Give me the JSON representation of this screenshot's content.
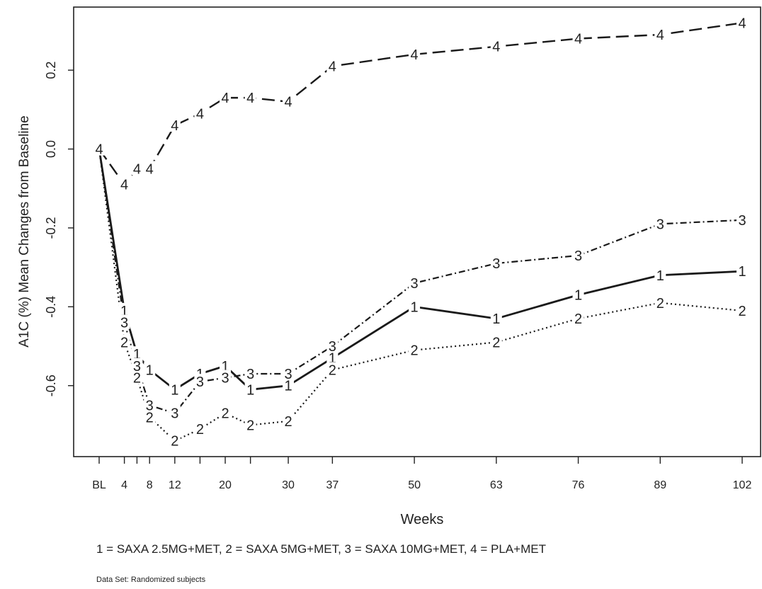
{
  "chart_data": {
    "type": "line",
    "xlabel": "Weeks",
    "ylabel": "A1C (%) Mean Changes from Baseline",
    "x_tick_labels": [
      "BL",
      "4",
      "8",
      "12",
      "20",
      "30",
      "37",
      "50",
      "63",
      "76",
      "89",
      "102"
    ],
    "x_tick_values": [
      0,
      4,
      8,
      12,
      20,
      30,
      37,
      50,
      63,
      76,
      89,
      102
    ],
    "y_ticks": [
      {
        "value": 0.2,
        "label": "0.2"
      },
      {
        "value": 0.0,
        "label": "0.0"
      },
      {
        "value": -0.2,
        "label": "-0.2"
      },
      {
        "value": -0.4,
        "label": "-0.4"
      },
      {
        "value": -0.6,
        "label": "-0.6"
      }
    ],
    "xlim": [
      0,
      102
    ],
    "ylim": [
      -0.78,
      0.36
    ],
    "series": [
      {
        "marker": "1",
        "style": "solid",
        "x": [
          0,
          4,
          6,
          8,
          12,
          16,
          20,
          24,
          30,
          37,
          50,
          63,
          76,
          89,
          102
        ],
        "y": [
          0.0,
          -0.41,
          -0.52,
          -0.56,
          -0.61,
          -0.57,
          -0.55,
          -0.61,
          -0.6,
          -0.53,
          -0.4,
          -0.43,
          -0.37,
          -0.32,
          -0.31
        ]
      },
      {
        "marker": "2",
        "style": "dotted",
        "x": [
          0,
          4,
          6,
          8,
          12,
          16,
          20,
          24,
          30,
          37,
          50,
          63,
          76,
          89,
          102
        ],
        "y": [
          0.0,
          -0.49,
          -0.58,
          -0.68,
          -0.74,
          -0.71,
          -0.67,
          -0.7,
          -0.69,
          -0.56,
          -0.51,
          -0.49,
          -0.43,
          -0.39,
          -0.41
        ]
      },
      {
        "marker": "3",
        "style": "dashdot",
        "x": [
          0,
          4,
          6,
          8,
          12,
          16,
          20,
          24,
          30,
          37,
          50,
          63,
          76,
          89,
          102
        ],
        "y": [
          0.0,
          -0.44,
          -0.55,
          -0.65,
          -0.67,
          -0.59,
          -0.58,
          -0.57,
          -0.57,
          -0.5,
          -0.34,
          -0.29,
          -0.27,
          -0.19,
          -0.18
        ]
      },
      {
        "marker": "4",
        "style": "longdash",
        "x": [
          0,
          4,
          6,
          8,
          12,
          16,
          20,
          24,
          30,
          37,
          50,
          63,
          76,
          89,
          102
        ],
        "y": [
          0.0,
          -0.09,
          -0.05,
          -0.05,
          0.06,
          0.09,
          0.13,
          0.13,
          0.12,
          0.21,
          0.24,
          0.26,
          0.28,
          0.29,
          0.32
        ]
      }
    ],
    "legend_text": "1 = SAXA 2.5MG+MET,  2 = SAXA 5MG+MET,  3 = SAXA 10MG+MET, 4 = PLA+MET",
    "footnote": "Data Set: Randomized subjects",
    "grid": false,
    "colors": {
      "line": "#1a1a1a",
      "axis": "#222222",
      "background": "#ffffff"
    }
  }
}
